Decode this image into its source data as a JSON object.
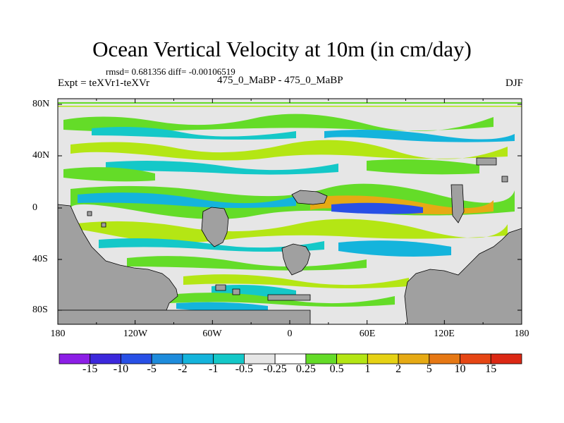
{
  "title": "Ocean Vertical Velocity at 10m (in cm/day)",
  "stats": "rmsd= 0.681356 diff= -0.00106519",
  "expt": "Expt = teXVr1-teXVr",
  "center_label": "475_0_MaBP - 475_0_MaBP",
  "season": "DJF",
  "lat_labels": [
    "80N",
    "40N",
    "0",
    "40S",
    "80S"
  ],
  "lon_labels": [
    "180",
    "120W",
    "60W",
    "0",
    "60E",
    "120E",
    "180"
  ],
  "colorbar": {
    "labels": [
      "-15",
      "-10",
      "-5",
      "-2",
      "-1",
      "-0.5",
      "-0.25",
      "0.25",
      "0.5",
      "1",
      "2",
      "5",
      "10",
      "15"
    ],
    "colors": [
      "#8c1ee6",
      "#3c28dc",
      "#2850e6",
      "#1e8cdc",
      "#14b4dc",
      "#14c8c8",
      "#e6e6e6",
      "#ffffff",
      "#64dc28",
      "#b4e614",
      "#e6d214",
      "#e6aa14",
      "#e67814",
      "#e64614",
      "#dc2814"
    ]
  },
  "land_color": "#a0a0a0",
  "ocean_color": "#e6e6e6"
}
